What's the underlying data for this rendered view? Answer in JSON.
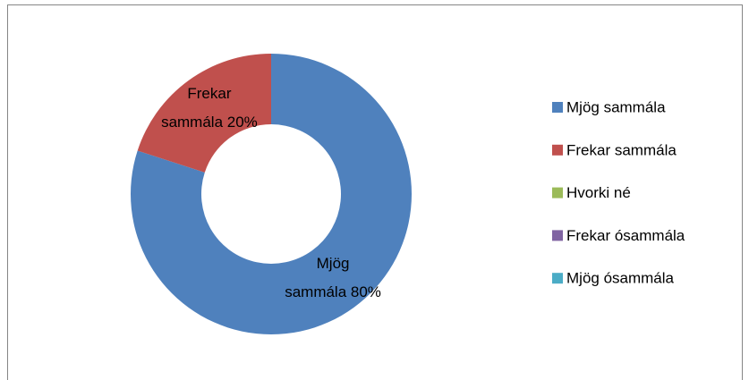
{
  "chart_data": {
    "type": "donut",
    "categories": [
      "Mjög sammála",
      "Frekar sammála",
      "Hvorki né",
      "Frekar ósammála",
      "Mjög ósammála"
    ],
    "values": [
      80,
      20,
      0,
      0,
      0
    ],
    "value_labels": [
      "Mjög sammála 80%",
      "Frekar sammála 20%",
      null,
      null,
      null
    ],
    "colors": [
      "#4f81bd",
      "#c0504d",
      "#9bbb59",
      "#8064a2",
      "#4bacc6"
    ],
    "legend": "right"
  }
}
